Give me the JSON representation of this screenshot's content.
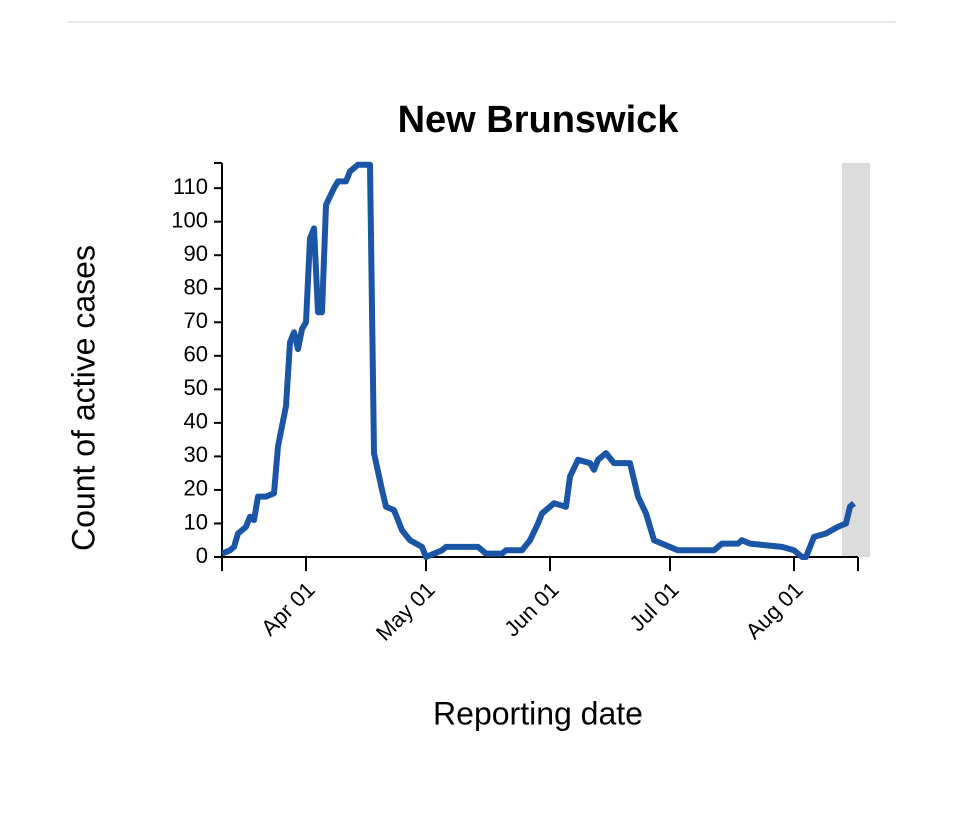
{
  "chart_data": {
    "type": "line",
    "title": "New Brunswick",
    "x_label": "Reporting date",
    "y_label": "Count of active cases",
    "x": [
      "Mar 11",
      "Mar 13",
      "Mar 14",
      "Mar 15",
      "Mar 17",
      "Mar 18",
      "Mar 19",
      "Mar 20",
      "Mar 22",
      "Mar 24",
      "Mar 25",
      "Mar 27",
      "Mar 28",
      "Mar 29",
      "Mar 30",
      "Mar 31",
      "Apr 01",
      "Apr 02",
      "Apr 03",
      "Apr 04",
      "Apr 05",
      "Apr 06",
      "Apr 08",
      "Apr 09",
      "Apr 11",
      "Apr 12",
      "Apr 14",
      "Apr 17",
      "Apr 18",
      "Apr 20",
      "Apr 21",
      "Apr 23",
      "Apr 24",
      "Apr 25",
      "Apr 27",
      "Apr 30",
      "May 01",
      "May 05",
      "May 06",
      "May 14",
      "May 16",
      "May 20",
      "May 21",
      "May 25",
      "May 27",
      "May 29",
      "May 30",
      "Jun 01",
      "Jun 02",
      "Jun 05",
      "Jun 06",
      "Jun 08",
      "Jun 11",
      "Jun 12",
      "Jun 13",
      "Jun 15",
      "Jun 17",
      "Jun 21",
      "Jun 23",
      "Jun 25",
      "Jun 27",
      "Jun 29",
      "Jul 03",
      "Jul 12",
      "Jul 14",
      "Jul 18",
      "Jul 19",
      "Jul 21",
      "Jul 29",
      "Aug 01",
      "Aug 03",
      "Aug 04",
      "Aug 06",
      "Aug 09",
      "Aug 12",
      "Aug 14",
      "Aug 15",
      "Aug 16"
    ],
    "series": [
      {
        "name": "Active cases",
        "color": "#1a56a5",
        "values": [
          1,
          2,
          3,
          7,
          9,
          12,
          11,
          18,
          18,
          19,
          33,
          45,
          64,
          67,
          62,
          68,
          70,
          95,
          98,
          73,
          73,
          105,
          110,
          112,
          112,
          115,
          117,
          117,
          31,
          20,
          15,
          14,
          11,
          8,
          5,
          3,
          0,
          2,
          3,
          3,
          1,
          1,
          2,
          2,
          5,
          10,
          13,
          15,
          16,
          15,
          24,
          29,
          28,
          26,
          29,
          31,
          28,
          28,
          18,
          13,
          5,
          4,
          2,
          2,
          4,
          4,
          5,
          4,
          3,
          2,
          0,
          0,
          6,
          7,
          9,
          10,
          15,
          16
        ]
      }
    ],
    "xlim": [
      "Mar 11",
      "Aug 17"
    ],
    "xticks": [
      "Apr 01",
      "May 01",
      "Jun 01",
      "Jul 01",
      "Aug 01"
    ],
    "ylim": [
      0,
      117.5
    ],
    "yticks": [
      0,
      10,
      20,
      30,
      40,
      50,
      60,
      70,
      80,
      90,
      100,
      110
    ],
    "shaded_range": [
      "Aug 13",
      "Aug 20"
    ],
    "shade_color": "#dcdcdc"
  }
}
